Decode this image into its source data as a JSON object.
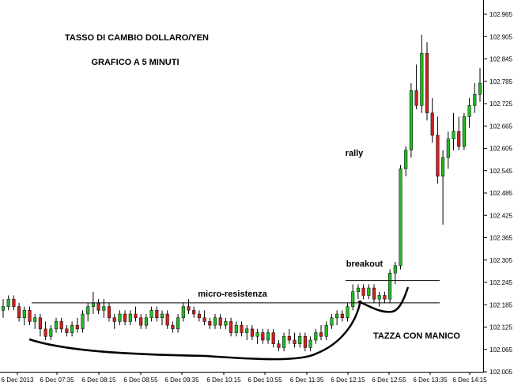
{
  "chart_data": {
    "type": "candlestick",
    "title": "TASSO DI CAMBIO DOLLARO/YEN",
    "subtitle": "GRAFICO A 5 MINUTI",
    "ylim": [
      102.005,
      103.0
    ],
    "y_ticks": [
      "102.965",
      "102.905",
      "102.845",
      "102.785",
      "102.725",
      "102.665",
      "102.605",
      "102.545",
      "102.485",
      "102.425",
      "102.365",
      "102.305",
      "102.245",
      "102.185",
      "102.125",
      "102.065",
      "102.005"
    ],
    "x_ticks": [
      "6 Dec 2013",
      "6 Dec 07:35",
      "6 Dec 08:15",
      "6 Dec 08:55",
      "6 Dec 09:35",
      "6 Dec 10:15",
      "6 Dec 10:55",
      "6 Dec 11:35",
      "6 Dec 12:15",
      "6 Dec 12:55",
      "6 Dec 13:35",
      "6 Dec 14:15"
    ],
    "grid": false,
    "colors": {
      "up": "#22bb22",
      "down": "#cc2222",
      "wick": "#000000",
      "pattern_line": "#000000"
    },
    "candles": [
      {
        "o": 102.17,
        "h": 102.2,
        "l": 102.15,
        "c": 102.18
      },
      {
        "o": 102.18,
        "h": 102.21,
        "l": 102.17,
        "c": 102.2
      },
      {
        "o": 102.2,
        "h": 102.21,
        "l": 102.17,
        "c": 102.18
      },
      {
        "o": 102.18,
        "h": 102.19,
        "l": 102.14,
        "c": 102.15
      },
      {
        "o": 102.15,
        "h": 102.18,
        "l": 102.13,
        "c": 102.17
      },
      {
        "o": 102.17,
        "h": 102.18,
        "l": 102.13,
        "c": 102.14
      },
      {
        "o": 102.14,
        "h": 102.16,
        "l": 102.12,
        "c": 102.15
      },
      {
        "o": 102.15,
        "h": 102.16,
        "l": 102.1,
        "c": 102.12
      },
      {
        "o": 102.12,
        "h": 102.14,
        "l": 102.09,
        "c": 102.1
      },
      {
        "o": 102.1,
        "h": 102.13,
        "l": 102.09,
        "c": 102.12
      },
      {
        "o": 102.12,
        "h": 102.15,
        "l": 102.11,
        "c": 102.14
      },
      {
        "o": 102.14,
        "h": 102.15,
        "l": 102.11,
        "c": 102.12
      },
      {
        "o": 102.12,
        "h": 102.13,
        "l": 102.1,
        "c": 102.11
      },
      {
        "o": 102.11,
        "h": 102.14,
        "l": 102.1,
        "c": 102.13
      },
      {
        "o": 102.13,
        "h": 102.15,
        "l": 102.11,
        "c": 102.12
      },
      {
        "o": 102.12,
        "h": 102.17,
        "l": 102.11,
        "c": 102.16
      },
      {
        "o": 102.16,
        "h": 102.19,
        "l": 102.14,
        "c": 102.18
      },
      {
        "o": 102.18,
        "h": 102.22,
        "l": 102.16,
        "c": 102.19
      },
      {
        "o": 102.19,
        "h": 102.2,
        "l": 102.16,
        "c": 102.17
      },
      {
        "o": 102.17,
        "h": 102.2,
        "l": 102.15,
        "c": 102.18
      },
      {
        "o": 102.18,
        "h": 102.19,
        "l": 102.14,
        "c": 102.15
      },
      {
        "o": 102.15,
        "h": 102.16,
        "l": 102.12,
        "c": 102.14
      },
      {
        "o": 102.14,
        "h": 102.17,
        "l": 102.13,
        "c": 102.16
      },
      {
        "o": 102.16,
        "h": 102.17,
        "l": 102.13,
        "c": 102.14
      },
      {
        "o": 102.14,
        "h": 102.17,
        "l": 102.13,
        "c": 102.16
      },
      {
        "o": 102.16,
        "h": 102.18,
        "l": 102.14,
        "c": 102.15
      },
      {
        "o": 102.15,
        "h": 102.16,
        "l": 102.12,
        "c": 102.13
      },
      {
        "o": 102.13,
        "h": 102.16,
        "l": 102.12,
        "c": 102.15
      },
      {
        "o": 102.15,
        "h": 102.18,
        "l": 102.14,
        "c": 102.17
      },
      {
        "o": 102.17,
        "h": 102.18,
        "l": 102.14,
        "c": 102.15
      },
      {
        "o": 102.15,
        "h": 102.17,
        "l": 102.13,
        "c": 102.16
      },
      {
        "o": 102.16,
        "h": 102.17,
        "l": 102.12,
        "c": 102.13
      },
      {
        "o": 102.13,
        "h": 102.14,
        "l": 102.11,
        "c": 102.12
      },
      {
        "o": 102.12,
        "h": 102.16,
        "l": 102.11,
        "c": 102.15
      },
      {
        "o": 102.15,
        "h": 102.19,
        "l": 102.14,
        "c": 102.18
      },
      {
        "o": 102.18,
        "h": 102.2,
        "l": 102.16,
        "c": 102.17
      },
      {
        "o": 102.17,
        "h": 102.18,
        "l": 102.15,
        "c": 102.16
      },
      {
        "o": 102.16,
        "h": 102.17,
        "l": 102.14,
        "c": 102.15
      },
      {
        "o": 102.15,
        "h": 102.17,
        "l": 102.13,
        "c": 102.14
      },
      {
        "o": 102.14,
        "h": 102.15,
        "l": 102.12,
        "c": 102.13
      },
      {
        "o": 102.13,
        "h": 102.16,
        "l": 102.12,
        "c": 102.15
      },
      {
        "o": 102.15,
        "h": 102.16,
        "l": 102.12,
        "c": 102.13
      },
      {
        "o": 102.13,
        "h": 102.15,
        "l": 102.12,
        "c": 102.14
      },
      {
        "o": 102.14,
        "h": 102.15,
        "l": 102.1,
        "c": 102.11
      },
      {
        "o": 102.11,
        "h": 102.14,
        "l": 102.1,
        "c": 102.13
      },
      {
        "o": 102.13,
        "h": 102.14,
        "l": 102.1,
        "c": 102.11
      },
      {
        "o": 102.11,
        "h": 102.13,
        "l": 102.09,
        "c": 102.12
      },
      {
        "o": 102.12,
        "h": 102.13,
        "l": 102.09,
        "c": 102.1
      },
      {
        "o": 102.1,
        "h": 102.12,
        "l": 102.08,
        "c": 102.11
      },
      {
        "o": 102.11,
        "h": 102.12,
        "l": 102.08,
        "c": 102.09
      },
      {
        "o": 102.09,
        "h": 102.12,
        "l": 102.08,
        "c": 102.11
      },
      {
        "o": 102.11,
        "h": 102.12,
        "l": 102.07,
        "c": 102.08
      },
      {
        "o": 102.08,
        "h": 102.09,
        "l": 102.06,
        "c": 102.07
      },
      {
        "o": 102.07,
        "h": 102.11,
        "l": 102.06,
        "c": 102.1
      },
      {
        "o": 102.1,
        "h": 102.12,
        "l": 102.08,
        "c": 102.09
      },
      {
        "o": 102.09,
        "h": 102.11,
        "l": 102.07,
        "c": 102.08
      },
      {
        "o": 102.08,
        "h": 102.11,
        "l": 102.07,
        "c": 102.1
      },
      {
        "o": 102.1,
        "h": 102.11,
        "l": 102.06,
        "c": 102.07
      },
      {
        "o": 102.07,
        "h": 102.1,
        "l": 102.06,
        "c": 102.09
      },
      {
        "o": 102.09,
        "h": 102.12,
        "l": 102.08,
        "c": 102.11
      },
      {
        "o": 102.11,
        "h": 102.13,
        "l": 102.09,
        "c": 102.1
      },
      {
        "o": 102.1,
        "h": 102.14,
        "l": 102.09,
        "c": 102.13
      },
      {
        "o": 102.13,
        "h": 102.16,
        "l": 102.12,
        "c": 102.15
      },
      {
        "o": 102.15,
        "h": 102.17,
        "l": 102.13,
        "c": 102.16
      },
      {
        "o": 102.16,
        "h": 102.17,
        "l": 102.14,
        "c": 102.15
      },
      {
        "o": 102.15,
        "h": 102.19,
        "l": 102.14,
        "c": 102.18
      },
      {
        "o": 102.18,
        "h": 102.24,
        "l": 102.17,
        "c": 102.22
      },
      {
        "o": 102.22,
        "h": 102.24,
        "l": 102.2,
        "c": 102.23
      },
      {
        "o": 102.23,
        "h": 102.24,
        "l": 102.2,
        "c": 102.21
      },
      {
        "o": 102.21,
        "h": 102.24,
        "l": 102.2,
        "c": 102.23
      },
      {
        "o": 102.23,
        "h": 102.24,
        "l": 102.19,
        "c": 102.2
      },
      {
        "o": 102.2,
        "h": 102.22,
        "l": 102.18,
        "c": 102.21
      },
      {
        "o": 102.21,
        "h": 102.22,
        "l": 102.19,
        "c": 102.2
      },
      {
        "o": 102.2,
        "h": 102.28,
        "l": 102.19,
        "c": 102.27
      },
      {
        "o": 102.27,
        "h": 102.3,
        "l": 102.24,
        "c": 102.29
      },
      {
        "o": 102.29,
        "h": 102.56,
        "l": 102.28,
        "c": 102.55
      },
      {
        "o": 102.55,
        "h": 102.61,
        "l": 102.53,
        "c": 102.6
      },
      {
        "o": 102.6,
        "h": 102.78,
        "l": 102.58,
        "c": 102.76
      },
      {
        "o": 102.76,
        "h": 102.83,
        "l": 102.71,
        "c": 102.72
      },
      {
        "o": 102.72,
        "h": 102.91,
        "l": 102.7,
        "c": 102.86
      },
      {
        "o": 102.86,
        "h": 102.89,
        "l": 102.68,
        "c": 102.7
      },
      {
        "o": 102.7,
        "h": 102.74,
        "l": 102.62,
        "c": 102.64
      },
      {
        "o": 102.64,
        "h": 102.69,
        "l": 102.51,
        "c": 102.53
      },
      {
        "o": 102.53,
        "h": 102.6,
        "l": 102.4,
        "c": 102.58
      },
      {
        "o": 102.58,
        "h": 102.65,
        "l": 102.55,
        "c": 102.63
      },
      {
        "o": 102.63,
        "h": 102.7,
        "l": 102.6,
        "c": 102.65
      },
      {
        "o": 102.65,
        "h": 102.69,
        "l": 102.6,
        "c": 102.61
      },
      {
        "o": 102.61,
        "h": 102.7,
        "l": 102.6,
        "c": 102.69
      },
      {
        "o": 102.69,
        "h": 102.74,
        "l": 102.66,
        "c": 102.72
      },
      {
        "o": 102.72,
        "h": 102.78,
        "l": 102.7,
        "c": 102.75
      },
      {
        "o": 102.75,
        "h": 102.82,
        "l": 102.73,
        "c": 102.78
      }
    ],
    "horizontal_lines": [
      {
        "y": 102.19,
        "label": "micro-resistenza"
      },
      {
        "y": 102.25,
        "label": "breakout"
      }
    ],
    "annotations": [
      "rally",
      "TAZZA CON MANICO"
    ]
  }
}
